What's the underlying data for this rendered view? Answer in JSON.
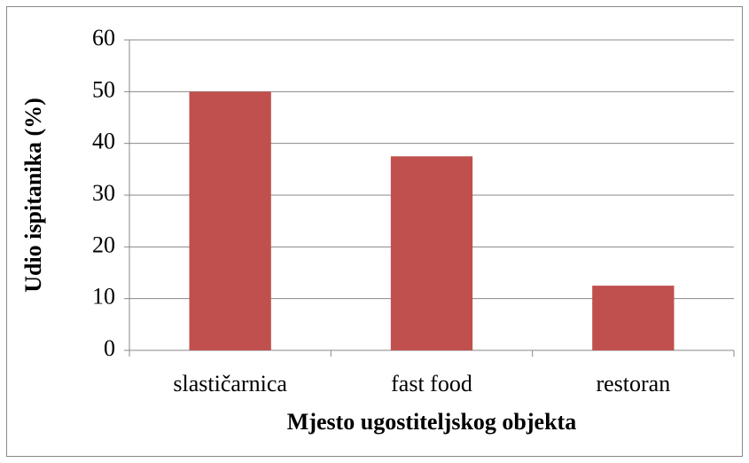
{
  "chart_data": {
    "type": "bar",
    "categories": [
      "slastičarnica",
      "fast food",
      "restoran"
    ],
    "values": [
      50,
      37.5,
      12.5
    ],
    "color": "#c0504d",
    "xlabel": "Mjesto ugostiteljskog objekta",
    "ylabel": "Udio ispitanika (%)",
    "ylim": [
      0,
      60
    ],
    "yticks": [
      0,
      10,
      20,
      30,
      40,
      50,
      60
    ],
    "grid": true
  }
}
